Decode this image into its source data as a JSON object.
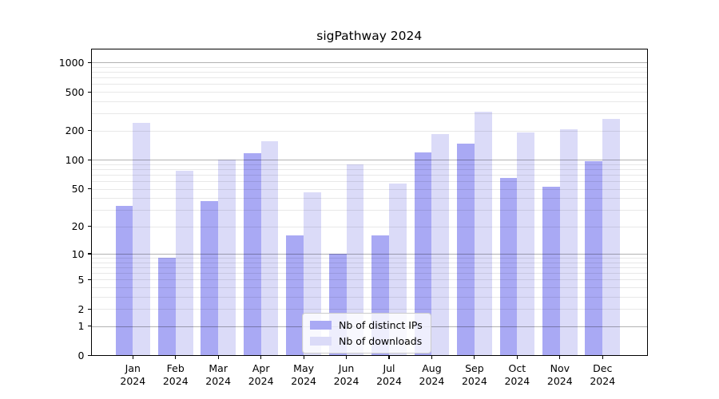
{
  "chart_data": {
    "type": "bar",
    "title": "sigPathway 2024",
    "categories": [
      "Jan",
      "Feb",
      "Mar",
      "Apr",
      "May",
      "Jun",
      "Jul",
      "Aug",
      "Sep",
      "Oct",
      "Nov",
      "Dec"
    ],
    "year": "2024",
    "series": [
      {
        "name": "Nb of distinct IPs",
        "color": "#a9a9f4",
        "values": [
          33,
          9,
          37,
          117,
          16,
          10,
          16,
          119,
          147,
          65,
          53,
          96
        ]
      },
      {
        "name": "Nb of downloads",
        "color": "#dbdbf8",
        "values": [
          240,
          77,
          100,
          155,
          46,
          90,
          57,
          186,
          310,
          192,
          207,
          265
        ]
      }
    ],
    "xlabel": "",
    "ylabel": "",
    "yscale": "log1p",
    "ylim": [
      0,
      1400
    ],
    "yticks": [
      0,
      1,
      2,
      5,
      10,
      20,
      50,
      100,
      200,
      500,
      1000
    ],
    "grid": {
      "show": true,
      "minor_per_decade": true,
      "grid_above_bars": true
    },
    "legend_position": "lower center",
    "colors": {
      "axis": "#000000",
      "major_grid": "rgba(0,0,0,0.30)",
      "minor_grid": "rgba(0,0,0,0.09)",
      "background": "#ffffff"
    }
  }
}
